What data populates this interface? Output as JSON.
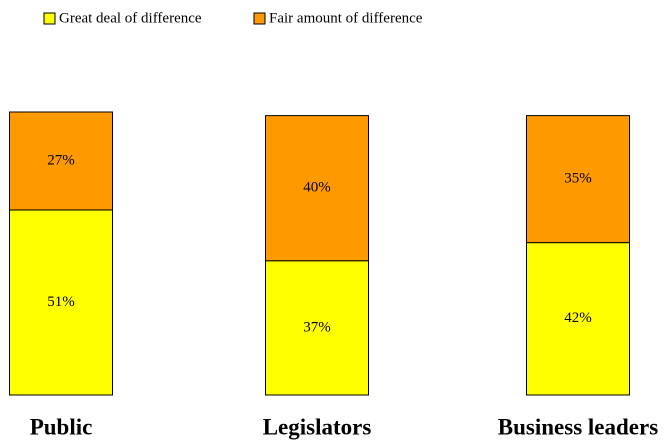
{
  "chart_data": {
    "type": "stacked_bar",
    "categories": [
      "Public",
      "Legislators",
      "Business leaders"
    ],
    "series": [
      {
        "name": "Great deal of difference",
        "color": "#ffff00",
        "values": [
          51,
          37,
          42
        ],
        "value_labels": [
          "51%",
          "37%",
          "42%"
        ]
      },
      {
        "name": "Fair amount of difference",
        "color": "#ff9900",
        "values": [
          27,
          40,
          35
        ],
        "value_labels": [
          "27%",
          "40%",
          "35%"
        ]
      }
    ],
    "legend": "top"
  }
}
